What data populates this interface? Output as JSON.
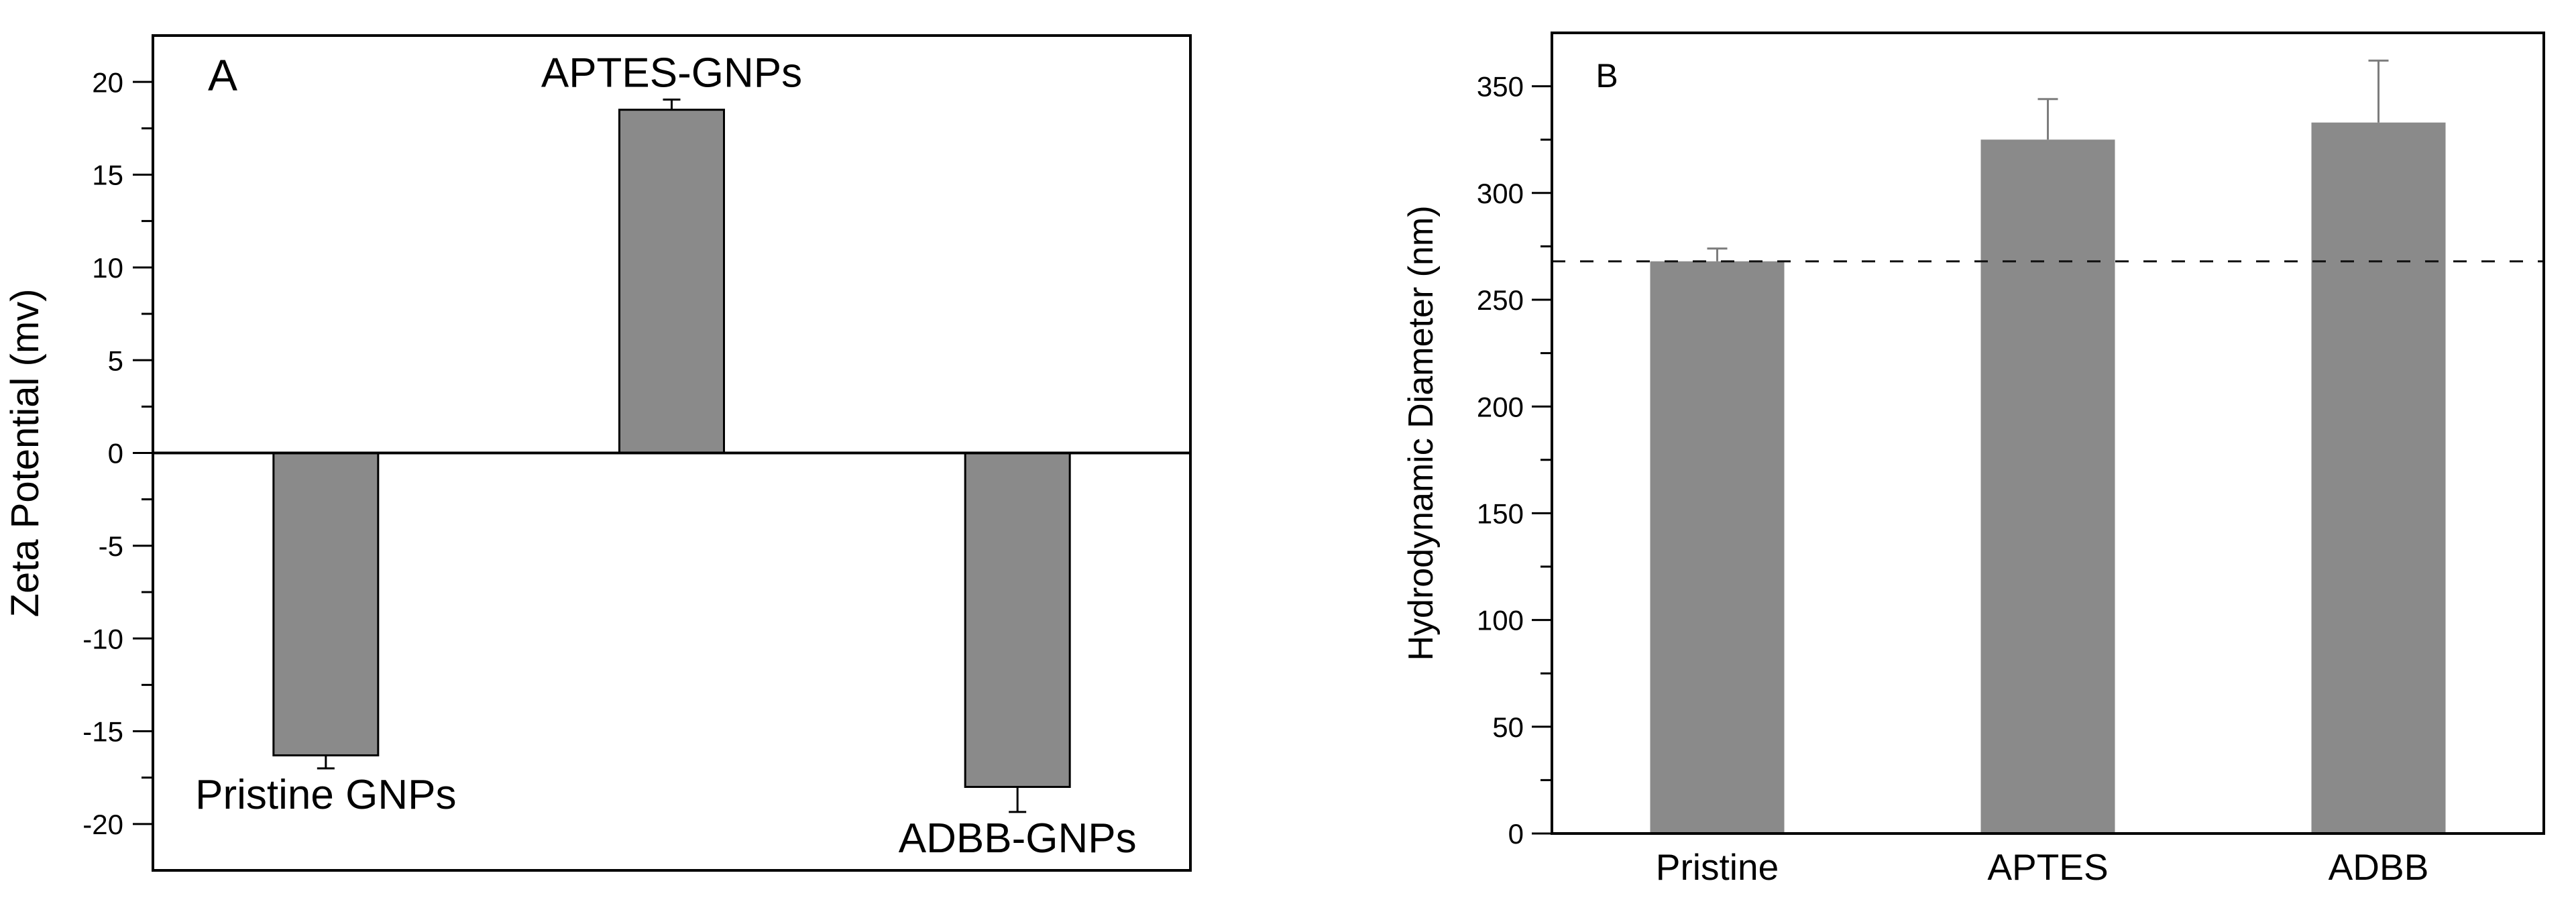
{
  "figure": {
    "background": "#ffffff",
    "colors": {
      "bar_fill": "#8a8a8a",
      "bar_outline": "#000000",
      "axis": "#000000",
      "error_bar_panel_a": "#000000",
      "error_bar_panel_b": "#7d7d7d",
      "reference_line": "#111111",
      "text": "#000000"
    }
  },
  "chart_data": [
    {
      "type": "bar",
      "panel_label": "A",
      "title": "",
      "xlabel": "",
      "ylabel": "Zeta Potential (mv)",
      "categories": [
        "Pristine GNPs",
        "APTES-GNPs",
        "ADBB-GNPs"
      ],
      "values": [
        -16.3,
        18.5,
        -18.0
      ],
      "errors": [
        0.7,
        0.55,
        1.35
      ],
      "ylim": [
        -22.5,
        22.5
      ],
      "yticks": [
        20,
        15,
        10,
        5,
        0,
        -5,
        -10,
        -15,
        -20
      ],
      "minor_tick_step": 2.5,
      "zero_line": true,
      "grid": false,
      "legend": "none",
      "bar_label_placement": "at-bar-end",
      "frame": true
    },
    {
      "type": "bar",
      "panel_label": "B",
      "title": "",
      "xlabel": "",
      "ylabel": "Hydrodynamic Diameter (nm)",
      "categories": [
        "Pristine",
        "APTES",
        "ADBB"
      ],
      "values": [
        268,
        325,
        333
      ],
      "errors": [
        6,
        19,
        29
      ],
      "ylim": [
        0,
        375
      ],
      "yticks": [
        0,
        50,
        100,
        150,
        200,
        250,
        300,
        350
      ],
      "minor_tick_step": 25,
      "zero_line": false,
      "reference_line": 268,
      "grid": false,
      "legend": "none",
      "bar_label_placement": "x-axis",
      "frame": true
    }
  ]
}
